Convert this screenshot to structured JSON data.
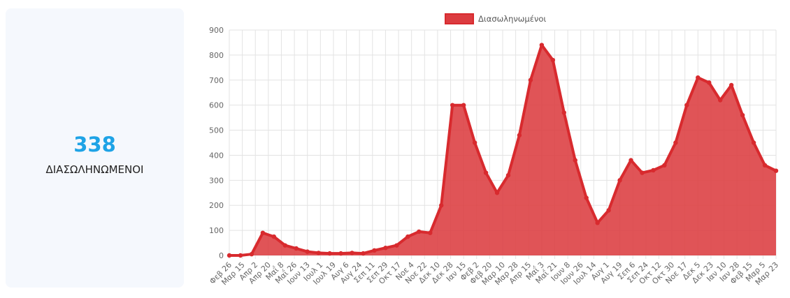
{
  "kpi": {
    "value": "338",
    "label": "ΔΙΑΣΩΛΗΝΩΜΕΝΟΙ"
  },
  "colors": {
    "accent": "#1ea3e6",
    "series": "#dc3c40",
    "seriesLine": "#d82a2e"
  },
  "chart_data": {
    "type": "area",
    "legend": "top",
    "grid": true,
    "ylim": [
      0,
      900
    ],
    "yticks": [
      0,
      100,
      200,
      300,
      400,
      500,
      600,
      700,
      800,
      900
    ],
    "xticklabels": [
      "Φεβ 26",
      "Μαρ 15",
      "Απρ 2",
      "Απρ 20",
      "Μαΐ 8",
      "Μαΐ 26",
      "Ιουν 13",
      "Ιουλ 1",
      "Ιουλ 19",
      "Αυγ 6",
      "Αυγ 24",
      "Σεπ 11",
      "Σεπ 29",
      "Οκτ 17",
      "Νοε 4",
      "Νοε 22",
      "Δεκ 10",
      "Δεκ 28",
      "Ιαν 15",
      "Φεβ 2",
      "Φεβ 20",
      "Μαρ 10",
      "Μαρ 28",
      "Απρ 15",
      "Μαΐ 3",
      "Μαΐ 21",
      "Ιουν 8",
      "Ιουν 26",
      "Ιουλ 14",
      "Αυγ 1",
      "Αυγ 19",
      "Σεπ 6",
      "Σεπ 24",
      "Οκτ 12",
      "Οκτ 30",
      "Νοε 17",
      "Δεκ 5",
      "Δεκ 23",
      "Ιαν 10",
      "Ιαν 28",
      "Φεβ 15",
      "Μαρ 5",
      "Μαρ 23"
    ],
    "series": [
      {
        "name": "Διασωληνωμένοι",
        "values": [
          0,
          0,
          5,
          90,
          75,
          40,
          28,
          15,
          10,
          8,
          8,
          10,
          8,
          20,
          30,
          40,
          75,
          95,
          90,
          200,
          600,
          600,
          450,
          330,
          250,
          320,
          480,
          700,
          840,
          780,
          570,
          380,
          230,
          130,
          180,
          300,
          380,
          330,
          340,
          360,
          450,
          600,
          710,
          690,
          620,
          680,
          560,
          450,
          360,
          338
        ]
      }
    ]
  }
}
